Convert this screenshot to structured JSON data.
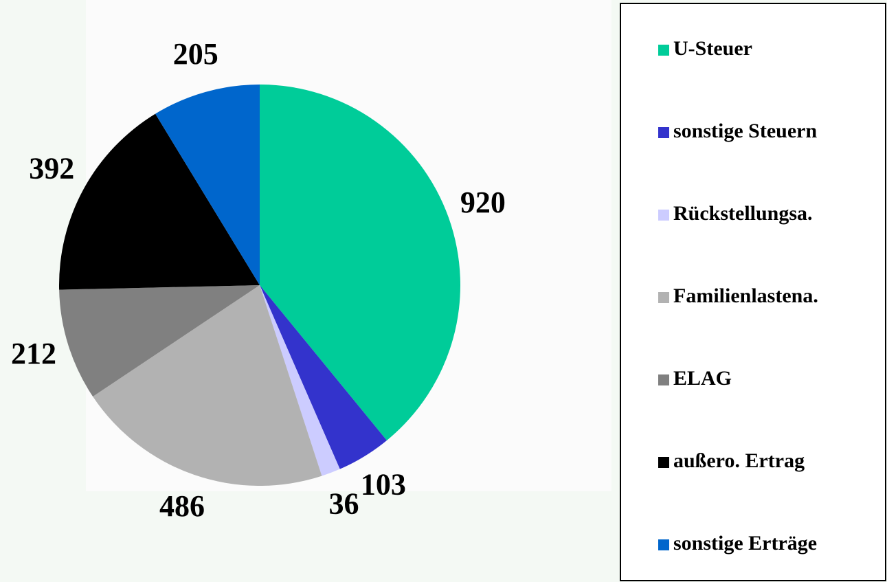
{
  "chart_data": {
    "type": "pie",
    "categories": [
      "U-Steuer",
      "sonstige Steuern",
      "Rückstellungsa.",
      "Familienlastena.",
      "ELAG",
      "außero. Ertrag",
      "sonstige Erträge"
    ],
    "values": [
      920,
      103,
      36,
      486,
      212,
      392,
      205
    ],
    "colors": [
      "#00cc99",
      "#3333cc",
      "#ccccff",
      "#b2b2b2",
      "#808080",
      "#000000",
      "#0066cc"
    ],
    "legend": "right"
  }
}
